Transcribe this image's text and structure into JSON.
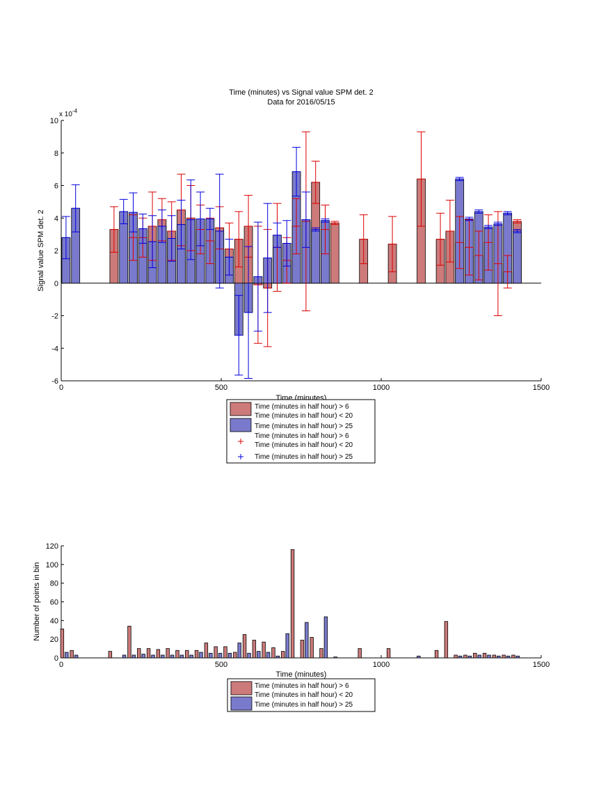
{
  "chart_data": [
    {
      "type": "bar",
      "title": "Time (minutes) vs Signal value SPM det. 2",
      "subtitle": "Data for 2016/05/15",
      "xlabel": "Time (minutes)",
      "ylabel": "Signal value SPM det. 2",
      "y_exponent": "x 10",
      "y_exponent_power": "-4",
      "xlim": [
        0,
        1500
      ],
      "ylim": [
        -6,
        10
      ],
      "x_ticks": [
        0,
        500,
        1000,
        1500
      ],
      "y_ticks": [
        -6,
        -4,
        -2,
        0,
        2,
        4,
        6,
        8,
        10
      ],
      "series": [
        {
          "name": "Time (minutes in half hour) > 6\nTime (minutes in half hour) < 20",
          "color": "#cc7a7a",
          "err_color": "#dd0000",
          "x": [
            165,
            225,
            255,
            285,
            315,
            345,
            375,
            405,
            435,
            465,
            495,
            525,
            555,
            585,
            615,
            645,
            675,
            705,
            735,
            765,
            795,
            825,
            855,
            945,
            1035,
            1125,
            1185,
            1215,
            1245,
            1275,
            1305,
            1335,
            1365,
            1395,
            1425
          ],
          "values": [
            3.3,
            2.8,
            2.8,
            3.5,
            3.9,
            3.2,
            4.5,
            4.0,
            3.3,
            2.6,
            3.4,
            2.1,
            2.7,
            3.5,
            -0.1,
            -0.3,
            2.2,
            1.4,
            3.5,
            3.8,
            6.2,
            3.3,
            3.7,
            2.7,
            2.4,
            6.4,
            2.7,
            3.2,
            2.5,
            2.2,
            1.7,
            2.5,
            1.2,
            0.7,
            3.8
          ],
          "err": [
            1.4,
            1.4,
            1.2,
            2.1,
            1.3,
            1.8,
            2.2,
            2.0,
            1.5,
            1.4,
            1.3,
            1.6,
            1.7,
            1.9,
            3.6,
            3.6,
            2.7,
            1.4,
            1.7,
            5.5,
            1.3,
            1.5,
            0.1,
            1.5,
            1.7,
            2.9,
            1.6,
            1.9,
            1.6,
            1.7,
            1.5,
            1.7,
            3.2,
            1.0,
            0.1
          ]
        },
        {
          "name": "Time (minutes in half hour) > 25",
          "color": "#7a7acc",
          "err_color": "#0000dd",
          "x": [
            15,
            45,
            195,
            225,
            255,
            285,
            315,
            345,
            375,
            405,
            435,
            465,
            495,
            525,
            555,
            585,
            615,
            645,
            675,
            705,
            735,
            765,
            795,
            825,
            1245,
            1275,
            1305,
            1335,
            1365,
            1395,
            1425
          ],
          "values": [
            2.8,
            4.6,
            4.4,
            4.35,
            3.35,
            2.55,
            3.5,
            2.75,
            3.6,
            3.9,
            3.95,
            3.95,
            3.2,
            1.6,
            -3.2,
            -1.8,
            0.4,
            1.55,
            2.95,
            2.45,
            6.85,
            3.9,
            3.3,
            3.85,
            6.4,
            3.95,
            4.4,
            3.45,
            3.65,
            4.3,
            3.2
          ],
          "err": [
            1.3,
            1.45,
            0.75,
            1.2,
            0.9,
            1.6,
            1.0,
            1.4,
            1.5,
            2.45,
            1.65,
            0.65,
            3.5,
            1.1,
            2.45,
            4.05,
            3.35,
            3.35,
            0.75,
            1.4,
            1.5,
            1.7,
            0.1,
            0.1,
            0.1,
            0.1,
            0.1,
            0.1,
            0.1,
            0.1,
            0.1
          ]
        }
      ],
      "legend": {
        "placement": "below",
        "entries": [
          {
            "label_1": "Time (minutes in half hour) > 6",
            "label_2": "Time (minutes in half hour) < 20",
            "kind": "patch",
            "color": "#cc7a7a"
          },
          {
            "label_1": "Time (minutes in half hour) > 25",
            "kind": "patch",
            "color": "#7a7acc"
          },
          {
            "label_1": "Time (minutes in half hour) > 6",
            "label_2": "Time (minutes in half hour) < 20",
            "kind": "marker",
            "color": "#dd0000"
          },
          {
            "label_1": "Time (minutes in half hour) > 25",
            "kind": "marker",
            "color": "#0000dd"
          }
        ]
      }
    },
    {
      "type": "bar",
      "xlabel": "Time (minutes)",
      "ylabel": "Number of points in bin",
      "xlim": [
        0,
        1500
      ],
      "ylim": [
        0,
        120
      ],
      "x_ticks": [
        0,
        500,
        1000,
        1500
      ],
      "y_ticks": [
        0,
        20,
        40,
        60,
        80,
        100,
        120
      ],
      "series": [
        {
          "name": "Time (minutes in half hour) > 6\nTime (minutes in half hour) < 20",
          "color": "#cc7a7a",
          "x": [
            3,
            33,
            153,
            213,
            243,
            273,
            303,
            333,
            363,
            393,
            423,
            453,
            483,
            513,
            543,
            573,
            603,
            633,
            663,
            693,
            723,
            753,
            783,
            813,
            933,
            1023,
            1173,
            1203,
            1233,
            1263,
            1293,
            1323,
            1353,
            1383,
            1413
          ],
          "values": [
            31,
            8,
            7,
            34,
            10,
            10,
            9,
            10,
            8,
            8,
            8,
            16,
            12,
            12,
            6,
            25,
            19,
            17,
            11,
            7,
            116,
            19,
            22,
            10,
            10,
            10,
            8,
            39,
            3,
            3,
            5,
            5,
            3,
            3,
            3
          ],
          "err": []
        },
        {
          "name": "Time (minutes in half hour) > 25",
          "color": "#7a7acc",
          "x": [
            17,
            47,
            197,
            227,
            257,
            287,
            317,
            347,
            377,
            407,
            437,
            467,
            497,
            527,
            557,
            587,
            617,
            647,
            677,
            707,
            767,
            827,
            857,
            1117,
            1247,
            1277,
            1307,
            1337,
            1367,
            1397,
            1427
          ],
          "values": [
            6,
            3,
            3,
            3,
            4,
            3,
            3,
            3,
            3,
            3,
            6,
            5,
            5,
            5,
            16,
            5,
            7,
            6,
            2,
            26,
            38,
            44,
            1,
            2,
            2,
            2,
            3,
            3,
            2,
            2,
            2
          ],
          "err": []
        }
      ],
      "legend": {
        "placement": "below",
        "entries": [
          {
            "label_1": "Time (minutes in half hour) > 6",
            "label_2": "Time (minutes in half hour) < 20",
            "kind": "patch",
            "color": "#cc7a7a"
          },
          {
            "label_1": "Time (minutes in half hour) > 25",
            "kind": "patch",
            "color": "#7a7acc"
          }
        ]
      }
    }
  ]
}
